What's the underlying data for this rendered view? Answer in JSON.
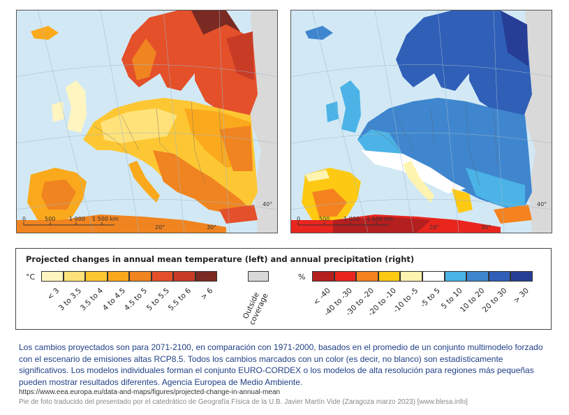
{
  "maps": {
    "left": {
      "scale_labels": [
        "0",
        "500",
        "1 000",
        "1 500 km"
      ],
      "lon_labels": [
        "20°",
        "30°"
      ],
      "lat_labels": [
        "40°"
      ]
    },
    "right": {
      "scale_labels": [
        "0",
        "500",
        "1 000",
        "1 500 km"
      ],
      "lon_labels": [
        "20°",
        "30°"
      ],
      "lat_labels": [
        "40°"
      ]
    }
  },
  "legend": {
    "title": "Projected changes in annual mean temperature (left) and annual precipitation (right)",
    "temperature": {
      "unit": "°C",
      "classes": [
        {
          "label": "< 3",
          "color": "#fff5c0"
        },
        {
          "label": "3 to 3.5",
          "color": "#ffe27a"
        },
        {
          "label": "3.5 to 4",
          "color": "#fdc734"
        },
        {
          "label": "4 to 4.5",
          "color": "#fba91c"
        },
        {
          "label": "4.5 to 5",
          "color": "#f08420"
        },
        {
          "label": "5 to 5.5",
          "color": "#e4502a"
        },
        {
          "label": "5.5 to 6",
          "color": "#c83c26"
        },
        {
          "label": "> 6",
          "color": "#7a2a22"
        }
      ]
    },
    "outside": {
      "label_line1": "Outside",
      "label_line2": "coverage",
      "color": "#d9d9d9"
    },
    "precipitation": {
      "unit": "%",
      "classes": [
        {
          "label": "< -40",
          "color": "#b41f1f"
        },
        {
          "label": "-40 to -30",
          "color": "#e8261e"
        },
        {
          "label": "-30 to -20",
          "color": "#f5821f"
        },
        {
          "label": "-20 to -10",
          "color": "#fdc913"
        },
        {
          "label": "-10 to -5",
          "color": "#fff3b0"
        },
        {
          "label": "-5 to 5",
          "color": "#ffffff"
        },
        {
          "label": "5 to 10",
          "color": "#4bb3e6"
        },
        {
          "label": "10 to 20",
          "color": "#3f86cf"
        },
        {
          "label": "20 to 30",
          "color": "#2f5fb7"
        },
        {
          "label": "> 30",
          "color": "#273e97"
        }
      ]
    }
  },
  "caption": "Los cambios proyectados son para 2071-2100, en comparación con 1971-2000, basados en el promedio de un conjunto multimodelo forzado con el escenario de emisiones altas RCP8.5. Todos los cambios marcados con un color (es decir, no blanco) son estadísticamente significativos. Los modelos individuales forman el conjunto EURO-CORDEX o los modelos de alta resolución para regiones más pequeñas pueden mostrar resultados diferentes. Agencia Europea de Medio Ambiente.",
  "source_url": "https://www.eea.europa.eu/data-and-maps/figures/projected-change-in-annual-mean",
  "credit": "Pie de foto traducido del presentado por el catedrático de Geografía Física de la U.B. Javier Martín Vide (Zaragoza marzo 2023) [www.blesa.info]"
}
